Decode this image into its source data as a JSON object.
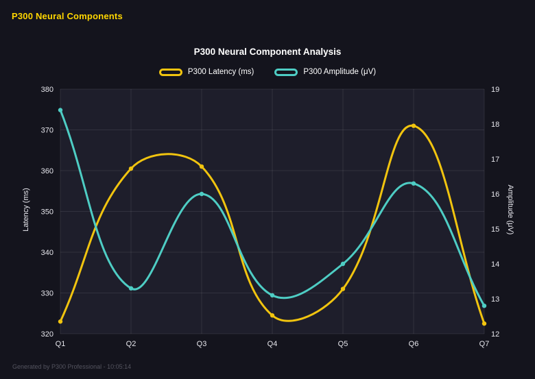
{
  "app": {
    "title": "P300 Neural Components"
  },
  "footer": {
    "text": "Generated by P300 Professional - 10:05:14"
  },
  "theme": {
    "page_bg": "#14141d",
    "plot_bg": "#1e1e2b",
    "grid_color": "rgba(255,255,255,0.09)",
    "tick_color": "#e6e6ec",
    "title_color": "#ffffff",
    "accent_yellow": "#f1c40f",
    "accent_teal": "#4ecdc4",
    "header_yellow": "#ffd600"
  },
  "chart_data": {
    "type": "line",
    "title": "P300 Neural Component Analysis",
    "categories": [
      "Q1",
      "Q2",
      "Q3",
      "Q4",
      "Q5",
      "Q6",
      "Q7"
    ],
    "series": [
      {
        "name": "P300 Latency (ms)",
        "axis": "left",
        "color": "#f1c40f",
        "values": [
          323,
          360.5,
          361,
          324.5,
          331,
          371,
          322.5
        ]
      },
      {
        "name": "P300 Amplitude (μV)",
        "axis": "right",
        "color": "#4ecdc4",
        "values": [
          18.4,
          13.3,
          16.0,
          13.1,
          14.0,
          16.3,
          12.8
        ]
      }
    ],
    "left_axis": {
      "label": "Latency (ms)",
      "min": 320,
      "max": 380,
      "step": 10
    },
    "right_axis": {
      "label": "Amplitude (μV)",
      "min": 12,
      "max": 19,
      "step": 1
    },
    "grid": true,
    "legend_position": "top",
    "curve_tension": 0.4
  }
}
